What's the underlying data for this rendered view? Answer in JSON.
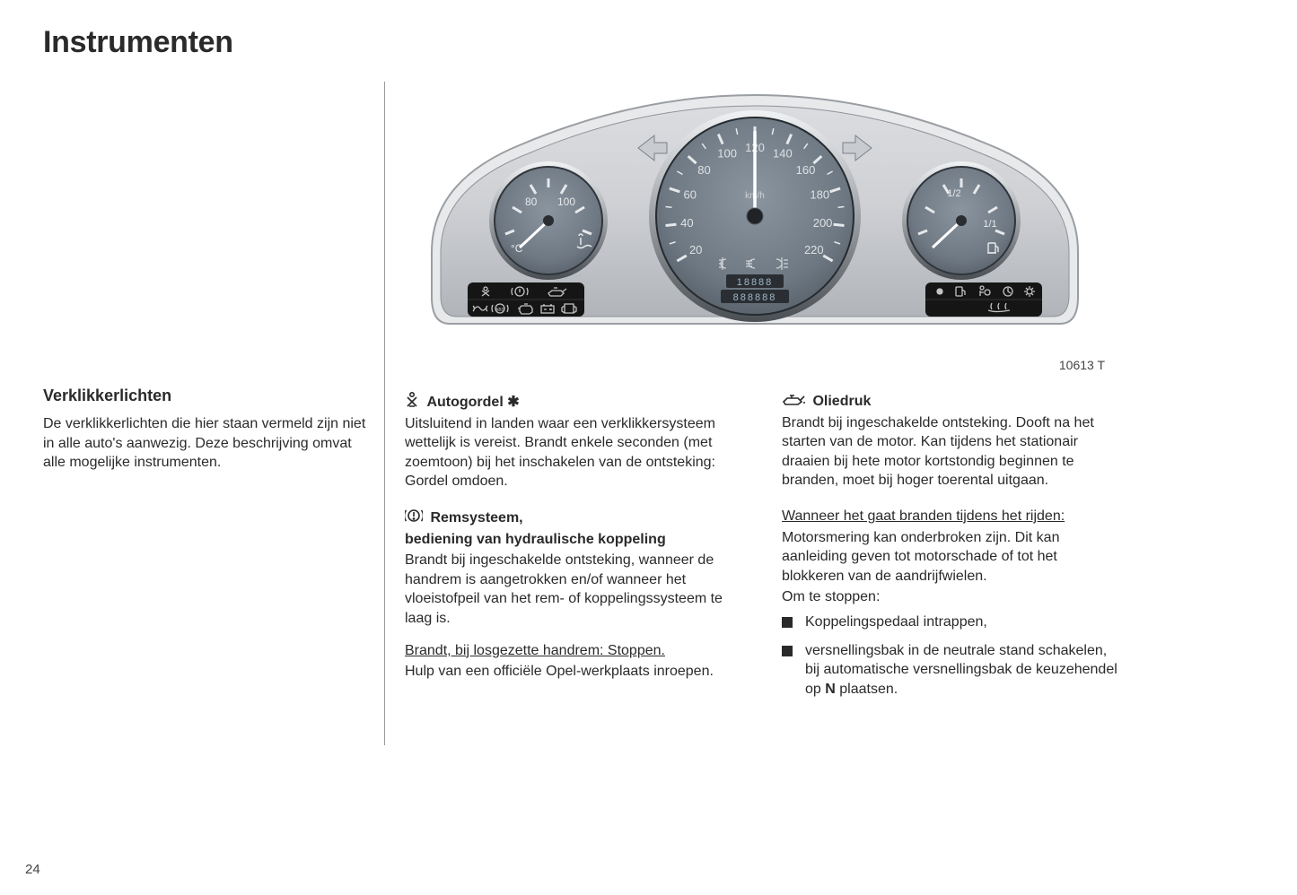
{
  "title": "Instrumenten",
  "figure_label": "10613 T",
  "page_number": "24",
  "left": {
    "heading": "Verklikkerlichten",
    "body": "De verklikkerlichten die hier staan vermeld zijn niet in alle auto's aanwezig. Deze beschrijving omvat alle mogelijke instrumenten."
  },
  "mid": {
    "s1_title": "Autogordel",
    "s1_suffix": "✱",
    "s1_body": "Uitsluitend in landen waar een verklikkersysteem wettelijk is vereist. Brandt enkele seconden (met zoemtoon) bij het inschakelen van de ontsteking: Gordel omdoen.",
    "s2_title1": "Remsysteem,",
    "s2_title2": "bediening van hydraulische koppeling",
    "s2_body1": "Brandt bij ingeschakelde ontsteking, wanneer de handrem is aangetrokken en/of wanneer het vloeistofpeil van het rem- of koppelingssysteem te laag is.",
    "s2_underlined": "Brandt, bij losgezette handrem: Stoppen.",
    "s2_body2": "Hulp van een officiële Opel-werkplaats inroepen."
  },
  "right": {
    "s1_title": "Oliedruk",
    "s1_body": "Brandt bij ingeschakelde ontsteking. Dooft na het starten van de motor. Kan tijdens het stationair draaien bij hete motor kortstondig beginnen te branden, moet bij hoger toerental uitgaan.",
    "s2_underlined": "Wanneer het gaat branden tijdens het rijden:",
    "s2_body1": "Motorsmering kan onderbroken zijn. Dit kan aanleiding geven tot motorschade of tot het blokkeren van de aandrijfwielen.",
    "s2_body2": "Om te stoppen:",
    "bullet1": "Koppelingspedaal intrappen,",
    "bullet2_a": "versnellingsbak in de neutrale stand schakelen, bij automatische versnellingsbak de keuzehendel op ",
    "bullet2_b": "N",
    "bullet2_c": " plaatsen."
  },
  "dashboard": {
    "bg_outer": "#e8e9ea",
    "bg_body": "linear",
    "body_grad_top": "#d8dade",
    "body_grad_bot": "#b6b8bc",
    "gauge_face": "#7b8590",
    "gauge_face_dark": "#5d6770",
    "gauge_rim": "#3f464d",
    "needle": "#ffffff",
    "tick": "#e8eaec",
    "dial_text": "#dfe3e6",
    "arrow_fill": "#cfd2d5",
    "warning_strip_bg": "#1a1a1a",
    "warning_icon": "#d0d0d0",
    "temp_labels": [
      "80",
      "100"
    ],
    "temp_unit": "°C",
    "speedo_labels": [
      "20",
      "40",
      "60",
      "80",
      "100",
      "120",
      "140",
      "160",
      "180",
      "200",
      "220"
    ],
    "speedo_unit": "km/h",
    "speedo_bottom_icons": [
      "fog-front",
      "headlight",
      "fog-rear"
    ],
    "odo_top": "18888",
    "odo_bottom": "888888",
    "fuel_labels": [
      "1/2",
      "1/1"
    ],
    "left_strip_icons": [
      "seatbelt",
      "brake-warning",
      "oil-can",
      "exhaust",
      "abs",
      "engine",
      "battery",
      "door"
    ],
    "right_strip_icons": [
      "indicator-dot",
      "fuel-low",
      "airbag",
      "service",
      "gear",
      "defrost"
    ]
  }
}
